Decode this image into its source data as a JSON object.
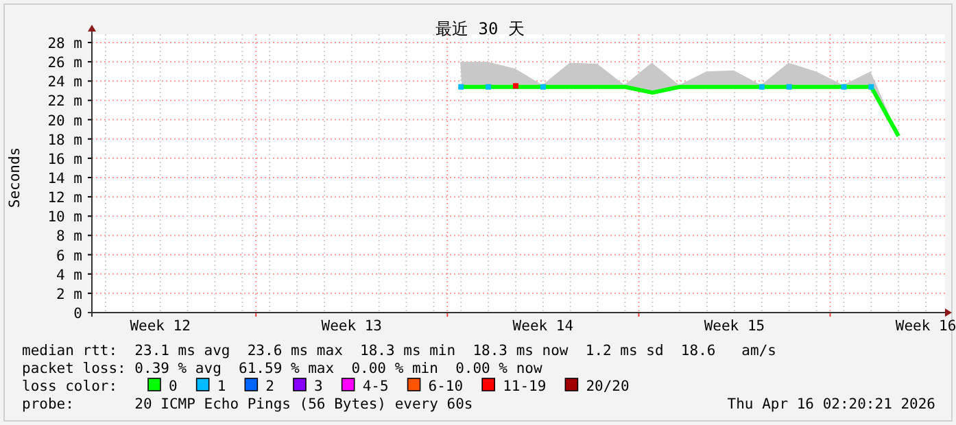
{
  "chart_data": {
    "type": "line",
    "title": "最近 30 天",
    "ylabel": "Seconds",
    "legend_title": "loss color:",
    "legend": "bottom",
    "grid": true,
    "line_style": "solid",
    "categories": [
      null,
      null,
      "Week 12",
      null,
      null,
      null,
      null,
      null,
      null,
      "Week 13",
      null,
      null,
      null,
      null,
      null,
      null,
      "Week 14",
      null,
      null,
      null,
      null,
      null,
      null,
      "Week 15",
      null,
      null,
      null,
      null,
      null,
      null,
      "Week 16"
    ],
    "ylim": [
      0,
      28
    ],
    "yticks": [
      0,
      {
        "value": 2,
        "label": "2 m"
      },
      {
        "value": 4,
        "label": "4 m"
      },
      {
        "value": 6,
        "label": "6 m"
      },
      {
        "value": 8,
        "label": "8 m"
      },
      {
        "value": 10,
        "label": "10 m"
      },
      {
        "value": 12,
        "label": "12 m"
      },
      {
        "value": 14,
        "label": "14 m"
      },
      {
        "value": 16,
        "label": "16 m"
      },
      {
        "value": 18,
        "label": "18 m"
      },
      {
        "value": 20,
        "label": "20 m"
      },
      {
        "value": 22,
        "label": "22 m"
      },
      {
        "value": 24,
        "label": "24 m"
      },
      {
        "value": 26,
        "label": "26 m"
      },
      {
        "value": 28,
        "label": "28 m"
      }
    ],
    "series": [
      {
        "name": "0",
        "color": "#00ff00",
        "values": [
          null,
          null,
          null,
          null,
          null,
          null,
          null,
          null,
          null,
          null,
          null,
          null,
          null,
          23.4,
          23.4,
          23.4,
          23.4,
          23.4,
          23.4,
          23.4,
          22.8,
          23.4,
          23.4,
          23.4,
          23.4,
          23.4,
          23.4,
          23.4,
          23.4,
          18.3,
          null
        ],
        "lower": [
          null,
          null,
          null,
          null,
          null,
          null,
          null,
          null,
          null,
          null,
          null,
          null,
          null,
          23.4,
          23.4,
          23.4,
          23.4,
          23.4,
          23.4,
          23.4,
          22.8,
          23.4,
          23.4,
          23.4,
          23.4,
          23.4,
          23.4,
          23.4,
          23.4,
          18.3,
          null
        ],
        "upper": [
          null,
          null,
          null,
          null,
          null,
          null,
          null,
          null,
          null,
          null,
          null,
          null,
          null,
          26.0,
          26.0,
          25.3,
          23.6,
          25.9,
          25.8,
          23.6,
          25.9,
          23.6,
          25.0,
          25.1,
          23.6,
          25.9,
          25.0,
          23.6,
          25.0,
          18.4,
          null
        ]
      },
      {
        "name": "1",
        "color": "#00bbff",
        "type": "scatter",
        "marker": "square",
        "values": [
          null,
          null,
          null,
          null,
          null,
          null,
          null,
          null,
          null,
          null,
          null,
          null,
          null,
          23.4,
          23.4,
          null,
          23.4,
          null,
          null,
          null,
          null,
          null,
          null,
          null,
          23.4,
          23.4,
          null,
          23.4,
          23.4,
          null,
          null
        ]
      },
      {
        "name": "2",
        "color": "#0066ff",
        "type": "scatter",
        "values": [
          null,
          null,
          null,
          null,
          null,
          null,
          null,
          null,
          null,
          null,
          null,
          null,
          null,
          null,
          null,
          null,
          null,
          null,
          null,
          null,
          null,
          null,
          null,
          null,
          null,
          null,
          null,
          null,
          null,
          null,
          null
        ]
      },
      {
        "name": "3",
        "color": "#8800ff",
        "type": "scatter",
        "values": [
          null,
          null,
          null,
          null,
          null,
          null,
          null,
          null,
          null,
          null,
          null,
          null,
          null,
          null,
          null,
          null,
          null,
          null,
          null,
          null,
          null,
          null,
          null,
          null,
          null,
          null,
          null,
          null,
          null,
          null,
          null
        ]
      },
      {
        "name": "4-5",
        "color": "#ff00ff",
        "type": "scatter",
        "values": [
          null,
          null,
          null,
          null,
          null,
          null,
          null,
          null,
          null,
          null,
          null,
          null,
          null,
          null,
          null,
          null,
          null,
          null,
          null,
          null,
          null,
          null,
          null,
          null,
          null,
          null,
          null,
          null,
          null,
          null,
          null
        ]
      },
      {
        "name": "6-10",
        "color": "#ff5500",
        "type": "scatter",
        "values": [
          null,
          null,
          null,
          null,
          null,
          null,
          null,
          null,
          null,
          null,
          null,
          null,
          null,
          null,
          null,
          null,
          null,
          null,
          null,
          null,
          null,
          null,
          null,
          null,
          null,
          null,
          null,
          null,
          null,
          null,
          null
        ]
      },
      {
        "name": "11-19",
        "color": "#ff0000",
        "type": "scatter",
        "marker": "square",
        "values": [
          null,
          null,
          null,
          null,
          null,
          null,
          null,
          null,
          null,
          null,
          null,
          null,
          null,
          null,
          null,
          23.5,
          null,
          null,
          null,
          null,
          null,
          null,
          null,
          null,
          null,
          null,
          null,
          null,
          null,
          null,
          null
        ]
      },
      {
        "name": "20/20",
        "color": "#a10000",
        "type": "scatter",
        "values": [
          null,
          null,
          null,
          null,
          null,
          null,
          null,
          null,
          null,
          null,
          null,
          null,
          null,
          null,
          null,
          null,
          null,
          null,
          null,
          null,
          null,
          null,
          null,
          null,
          null,
          null,
          null,
          null,
          null,
          null,
          null
        ]
      }
    ],
    "annotations": [
      "median rtt:  23.1 ms avg  23.6 ms max  18.3 ms min  18.3 ms now  1.2 ms sd  18.6   am/s",
      "packet loss: 0.39 % avg  61.59 % max  0.00 % min  0.00 % now",
      "probe:       20 ICMP Echo Pings (56 Bytes) every 60s",
      "Thu Apr 16 02:20:21 2026"
    ]
  }
}
